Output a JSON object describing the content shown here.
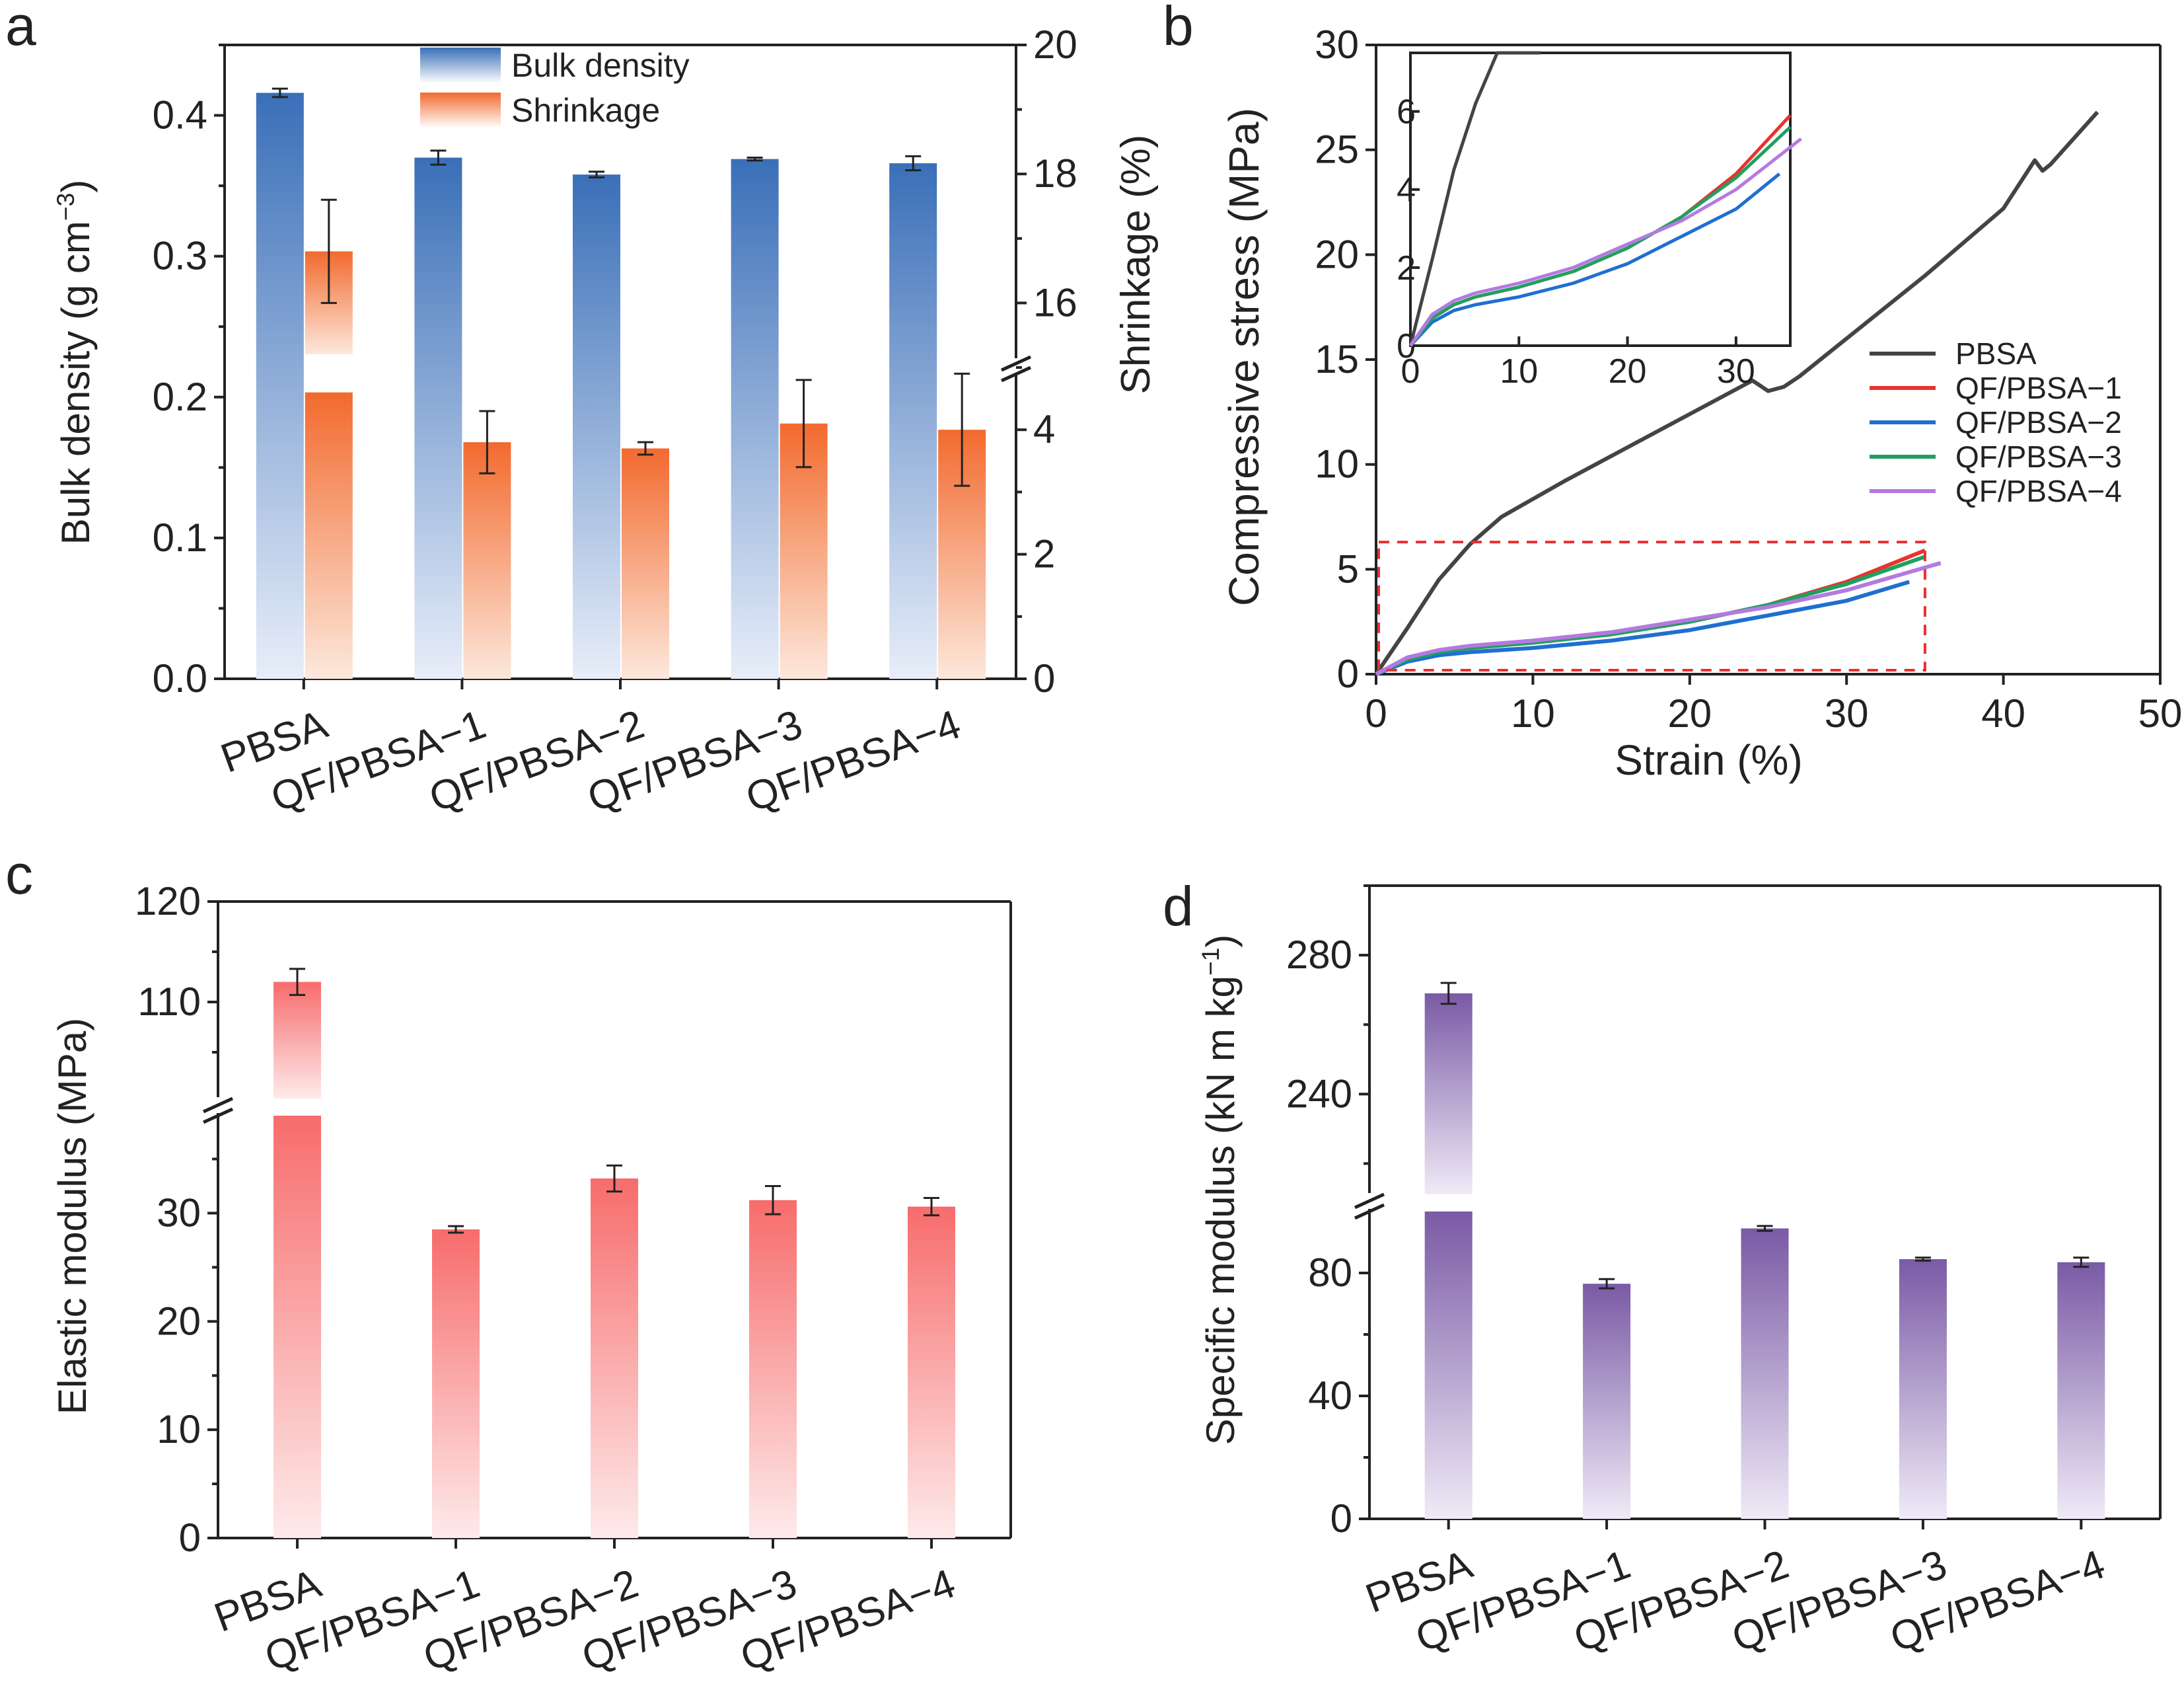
{
  "colors": {
    "blue": "#3a6fb8",
    "orange": "#f26a2e",
    "red": "#f76c6c",
    "purple": "#7a5aa5",
    "pbsa": "#444444",
    "qf1": "#e8332f",
    "qf2": "#1f6fd0",
    "qf3": "#20a060",
    "qf4": "#b47ae0",
    "highlight": "#e83030"
  },
  "chart_data": [
    {
      "panel": "a",
      "type": "bar",
      "categories": [
        "PBSA",
        "QF/PBSA−1",
        "QF/PBSA−2",
        "QF/PBSA−3",
        "QF/PBSA−4"
      ],
      "series": [
        {
          "name": "Bulk density",
          "axis": "left",
          "values": [
            0.416,
            0.37,
            0.358,
            0.369,
            0.366
          ],
          "errors": [
            0.003,
            0.005,
            0.002,
            0.001,
            0.005
          ]
        },
        {
          "name": "Shrinkage",
          "axis": "right",
          "values": [
            16.8,
            3.8,
            3.7,
            4.1,
            4.0
          ],
          "errors": [
            0.8,
            0.5,
            0.1,
            0.7,
            0.9
          ]
        }
      ],
      "ylabel": "Bulk density (g cm",
      "ylabel_sup": "−3",
      "ylabel_end": ")",
      "ylim": [
        0,
        0.45
      ],
      "yticks": [
        "0.0",
        "0.1",
        "0.2",
        "0.3",
        "0.4"
      ],
      "y2label": "Shrinkage (%)",
      "y2_lower_range": [
        0,
        5
      ],
      "y2_upper_range": [
        15,
        20
      ],
      "y2ticks_lower": [
        "0",
        "2",
        "4"
      ],
      "y2ticks_upper": [
        "16",
        "18",
        "20"
      ],
      "legend": [
        "Bulk density",
        "Shrinkage"
      ]
    },
    {
      "panel": "b",
      "type": "line",
      "xlabel": "Strain (%)",
      "ylabel": "Compressive stress (MPa)",
      "xlim": [
        0,
        50
      ],
      "ylim": [
        0,
        30
      ],
      "xticks": [
        "0",
        "10",
        "20",
        "30",
        "40",
        "50"
      ],
      "yticks": [
        "0",
        "5",
        "10",
        "15",
        "20",
        "25",
        "30"
      ],
      "series": [
        {
          "name": "PBSA",
          "points": [
            [
              0,
              0
            ],
            [
              2,
              2.2
            ],
            [
              4,
              4.5
            ],
            [
              6,
              6.2
            ],
            [
              8,
              7.5
            ],
            [
              12,
              9.2
            ],
            [
              16,
              10.8
            ],
            [
              20,
              12.4
            ],
            [
              24,
              14.0
            ],
            [
              25,
              13.5
            ],
            [
              26,
              13.7
            ],
            [
              27,
              14.2
            ],
            [
              30,
              16.0
            ],
            [
              35,
              19.0
            ],
            [
              40,
              22.2
            ],
            [
              42,
              24.5
            ],
            [
              42.5,
              24.0
            ],
            [
              43,
              24.3
            ],
            [
              46,
              26.8
            ]
          ]
        },
        {
          "name": "QF/PBSA−1",
          "points": [
            [
              0,
              0
            ],
            [
              2,
              0.7
            ],
            [
              4,
              1.05
            ],
            [
              6,
              1.25
            ],
            [
              10,
              1.5
            ],
            [
              15,
              1.9
            ],
            [
              20,
              2.5
            ],
            [
              25,
              3.3
            ],
            [
              30,
              4.4
            ],
            [
              35,
              5.9
            ]
          ]
        },
        {
          "name": "QF/PBSA−2",
          "points": [
            [
              0,
              0
            ],
            [
              2,
              0.6
            ],
            [
              4,
              0.9
            ],
            [
              6,
              1.05
            ],
            [
              10,
              1.25
            ],
            [
              15,
              1.6
            ],
            [
              20,
              2.1
            ],
            [
              25,
              2.8
            ],
            [
              30,
              3.5
            ],
            [
              34,
              4.4
            ]
          ]
        },
        {
          "name": "QF/PBSA−3",
          "points": [
            [
              0,
              0
            ],
            [
              2,
              0.7
            ],
            [
              4,
              1.05
            ],
            [
              6,
              1.25
            ],
            [
              10,
              1.5
            ],
            [
              15,
              1.9
            ],
            [
              20,
              2.5
            ],
            [
              25,
              3.3
            ],
            [
              30,
              4.3
            ],
            [
              35,
              5.6
            ]
          ]
        },
        {
          "name": "QF/PBSA−4",
          "points": [
            [
              0,
              0
            ],
            [
              2,
              0.8
            ],
            [
              4,
              1.15
            ],
            [
              6,
              1.35
            ],
            [
              10,
              1.6
            ],
            [
              15,
              2.0
            ],
            [
              20,
              2.6
            ],
            [
              25,
              3.2
            ],
            [
              30,
              4.0
            ],
            [
              36,
              5.3
            ]
          ]
        }
      ],
      "highlight_box": {
        "x": [
          0,
          35
        ],
        "y": [
          0,
          6.3
        ]
      },
      "inset": {
        "xlim": [
          0,
          35
        ],
        "ylim": [
          0,
          7.5
        ],
        "xticks": [
          "0",
          "10",
          "20",
          "30"
        ],
        "yticks": [
          "0",
          "2",
          "4",
          "6"
        ]
      },
      "legend": [
        "PBSA",
        "QF/PBSA−1",
        "QF/PBSA−2",
        "QF/PBSA−3",
        "QF/PBSA−4"
      ]
    },
    {
      "panel": "c",
      "type": "bar",
      "categories": [
        "PBSA",
        "QF/PBSA−1",
        "QF/PBSA−2",
        "QF/PBSA−3",
        "QF/PBSA−4"
      ],
      "values": [
        112,
        28.5,
        33.2,
        31.2,
        30.6
      ],
      "errors": [
        1.3,
        0.3,
        1.2,
        1.3,
        0.8
      ],
      "ylabel": "Elastic modulus (MPa)",
      "lower_range": [
        0,
        39
      ],
      "upper_range": [
        100,
        120
      ],
      "yticks_lower": [
        "0",
        "10",
        "20",
        "30"
      ],
      "yticks_upper": [
        "110",
        "120"
      ]
    },
    {
      "panel": "d",
      "type": "bar",
      "categories": [
        "PBSA",
        "QF/PBSA−1",
        "QF/PBSA−2",
        "QF/PBSA−3",
        "QF/PBSA−4"
      ],
      "values": [
        269,
        76.5,
        94.5,
        84.5,
        83.5
      ],
      "errors": [
        3.0,
        1.5,
        0.8,
        0.5,
        1.5
      ],
      "ylabel": "Specific modulus (kN m kg",
      "ylabel_sup": "−1",
      "ylabel_end": ")",
      "lower_range": [
        0,
        100
      ],
      "upper_range": [
        210,
        300
      ],
      "yticks_lower": [
        "0",
        "40",
        "80"
      ],
      "yticks_upper": [
        "240",
        "280"
      ]
    }
  ],
  "panel_labels": [
    "a",
    "b",
    "c",
    "d"
  ]
}
